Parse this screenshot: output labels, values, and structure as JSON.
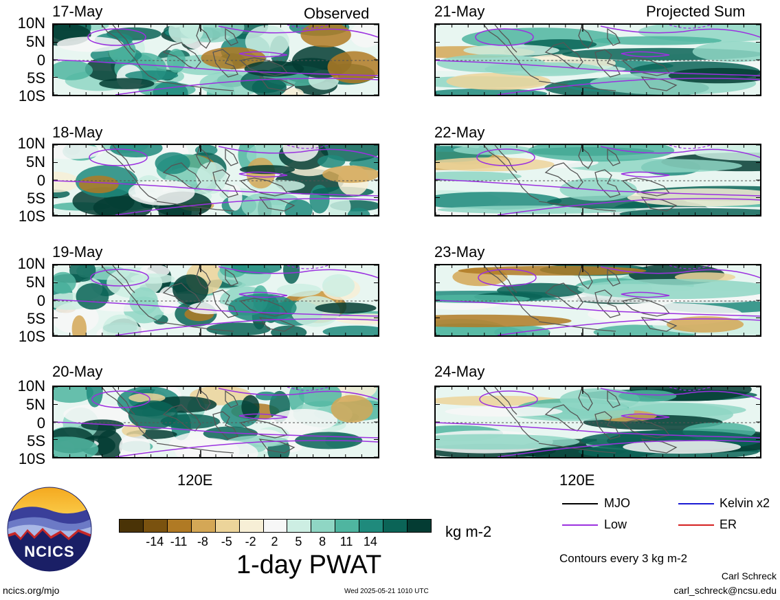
{
  "columns": {
    "left": "Observed",
    "right": "Projected Sum"
  },
  "lat_labels": [
    "10N",
    "5N",
    "0",
    "5S",
    "10S"
  ],
  "lon_label": "120E",
  "panels_left": [
    {
      "date": "17-May"
    },
    {
      "date": "18-May"
    },
    {
      "date": "19-May"
    },
    {
      "date": "20-May"
    }
  ],
  "panels_right": [
    {
      "date": "21-May"
    },
    {
      "date": "22-May"
    },
    {
      "date": "23-May"
    },
    {
      "date": "24-May"
    }
  ],
  "colorbar": {
    "ticks": [
      "-14",
      "-11",
      "-8",
      "-5",
      "-2",
      "2",
      "5",
      "8",
      "11",
      "14"
    ],
    "colors": [
      "#4a3306",
      "#7a520f",
      "#b07a24",
      "#d4a756",
      "#ecd49a",
      "#f7efd6",
      "#f7f7f7",
      "#cdeee3",
      "#8fd6c4",
      "#4fb5a0",
      "#1f8a7c",
      "#0b6457",
      "#043c33"
    ],
    "units": "kg m-2",
    "title": "1-day PWAT"
  },
  "legend": {
    "mjo": "MJO",
    "kelvin": "Kelvin x2",
    "low": "Low",
    "er": "ER",
    "colors": {
      "mjo": "#000000",
      "kelvin": "#1a1ad4",
      "low": "#9b30e0",
      "er": "#d42020"
    },
    "contour_note": "Contours every 3 kg m-2"
  },
  "logo": {
    "text": "NCICS"
  },
  "footer": {
    "url": "ncics.org/mjo",
    "timestamp": "Wed 2025-05-21 1010 UTC",
    "author": "Carl Schreck",
    "email": "carl_schreck@ncsu.edu"
  }
}
